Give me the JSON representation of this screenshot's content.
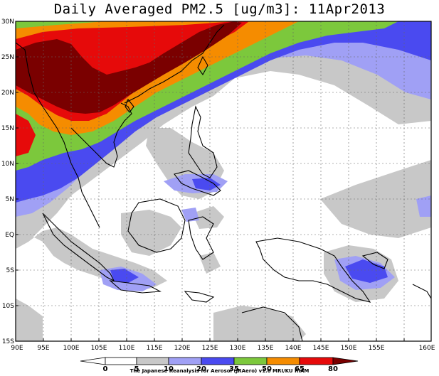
{
  "title": "Daily Averaged PM2.5 [ug/m3]: 11Apr2013",
  "credit": "The Japanese Reanalysis for Aerosol (JRAero) v1.0 MRI/KU RIAM",
  "lat_labels": [
    "30N",
    "25N",
    "20N",
    "15N",
    "10N",
    "5N",
    "EQ",
    "5S",
    "10S",
    "15S"
  ],
  "lon_labels": [
    "90E",
    "95E",
    "100E",
    "105E",
    "110E",
    "115E",
    "120E",
    "125E",
    "130E",
    "135E",
    "140E",
    "145E",
    "150E",
    "155E",
    "160E"
  ],
  "colorbar": {
    "ticks": [
      "0",
      "5",
      "10",
      "20",
      "35",
      "50",
      "65",
      "80"
    ],
    "colors": [
      "#ffffff",
      "#c8c8c8",
      "#a0a0f5",
      "#4a4af0",
      "#7cc83c",
      "#f58c00",
      "#e60a0a",
      "#7a0000"
    ]
  }
}
